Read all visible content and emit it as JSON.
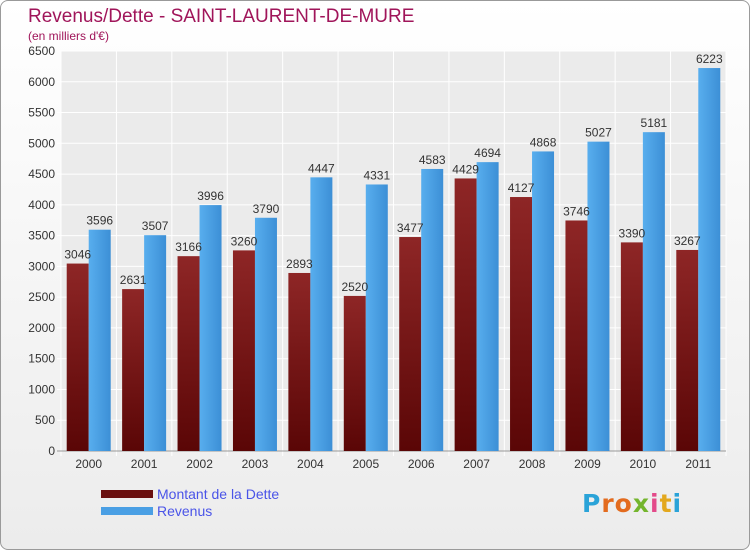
{
  "chart_data": {
    "type": "bar",
    "title": "Revenus/Dette - SAINT-LAURENT-DE-MURE",
    "subtitle": "(en milliers d'€)",
    "categories": [
      "2000",
      "2001",
      "2002",
      "2003",
      "2004",
      "2005",
      "2006",
      "2007",
      "2008",
      "2009",
      "2010",
      "2011"
    ],
    "series": [
      {
        "name": "Montant de la Dette",
        "color": "#7a1a1a",
        "values": [
          3046,
          2631,
          3166,
          3260,
          2893,
          2520,
          3477,
          4429,
          4127,
          3746,
          3390,
          3267
        ]
      },
      {
        "name": "Revenus",
        "color": "#4a9fe4",
        "values": [
          3596,
          3507,
          3996,
          3790,
          4447,
          4331,
          4583,
          4694,
          4868,
          5027,
          5181,
          6223
        ]
      }
    ],
    "ylim": [
      0,
      6500
    ],
    "yticks": [
      0,
      500,
      1000,
      1500,
      2000,
      2500,
      3000,
      3500,
      4000,
      4500,
      5000,
      5500,
      6000,
      6500
    ],
    "grid": true,
    "legend_position": "bottom-left"
  },
  "logo": {
    "letters": [
      "P",
      "r",
      "o",
      "x",
      "i",
      "t",
      "i"
    ],
    "colors": [
      "#2aa3d8",
      "#e36b1e",
      "#e36b1e",
      "#74b52d",
      "#e34b8a",
      "#e3a81e",
      "#2aa3d8"
    ]
  }
}
